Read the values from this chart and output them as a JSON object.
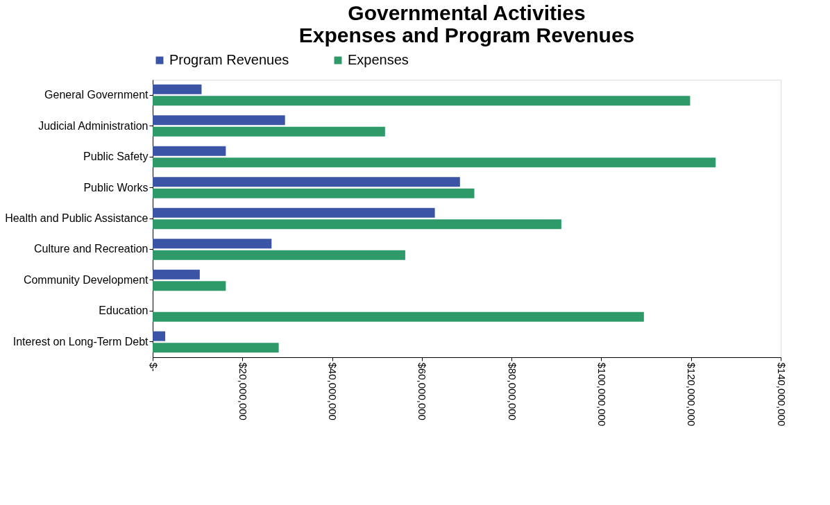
{
  "chart_data": {
    "type": "bar",
    "orientation": "horizontal",
    "title": "Governmental Activities\nExpenses and Program Revenues",
    "categories": [
      "General Government",
      "Judicial Administration",
      "Public Safety",
      "Public Works",
      "Health and Public Assistance",
      "Culture and Recreation",
      "Community Development",
      "Education",
      "Interest on Long-Term Debt"
    ],
    "series": [
      {
        "name": "Program Revenues",
        "color": "#3b54a5",
        "values": [
          10900000,
          29500000,
          16300000,
          68500000,
          62900000,
          26500000,
          10500000,
          0,
          2800000
        ]
      },
      {
        "name": "Expenses",
        "color": "#2e9a6a",
        "values": [
          119800000,
          51800000,
          125500000,
          71700000,
          91100000,
          56300000,
          16300000,
          109500000,
          28100000
        ]
      }
    ],
    "xlim": [
      0,
      140000000
    ],
    "xticks": [
      {
        "value": 0,
        "label": "$-"
      },
      {
        "value": 20000000,
        "label": "$20,000,000"
      },
      {
        "value": 40000000,
        "label": "$40,000,000"
      },
      {
        "value": 60000000,
        "label": "$60,000,000"
      },
      {
        "value": 80000000,
        "label": "$80,000,000"
      },
      {
        "value": 100000000,
        "label": "$100,000,000"
      },
      {
        "value": 120000000,
        "label": "$120,000,000"
      },
      {
        "value": 140000000,
        "label": "$140,000,000"
      }
    ],
    "legend": "top",
    "grid": false
  }
}
